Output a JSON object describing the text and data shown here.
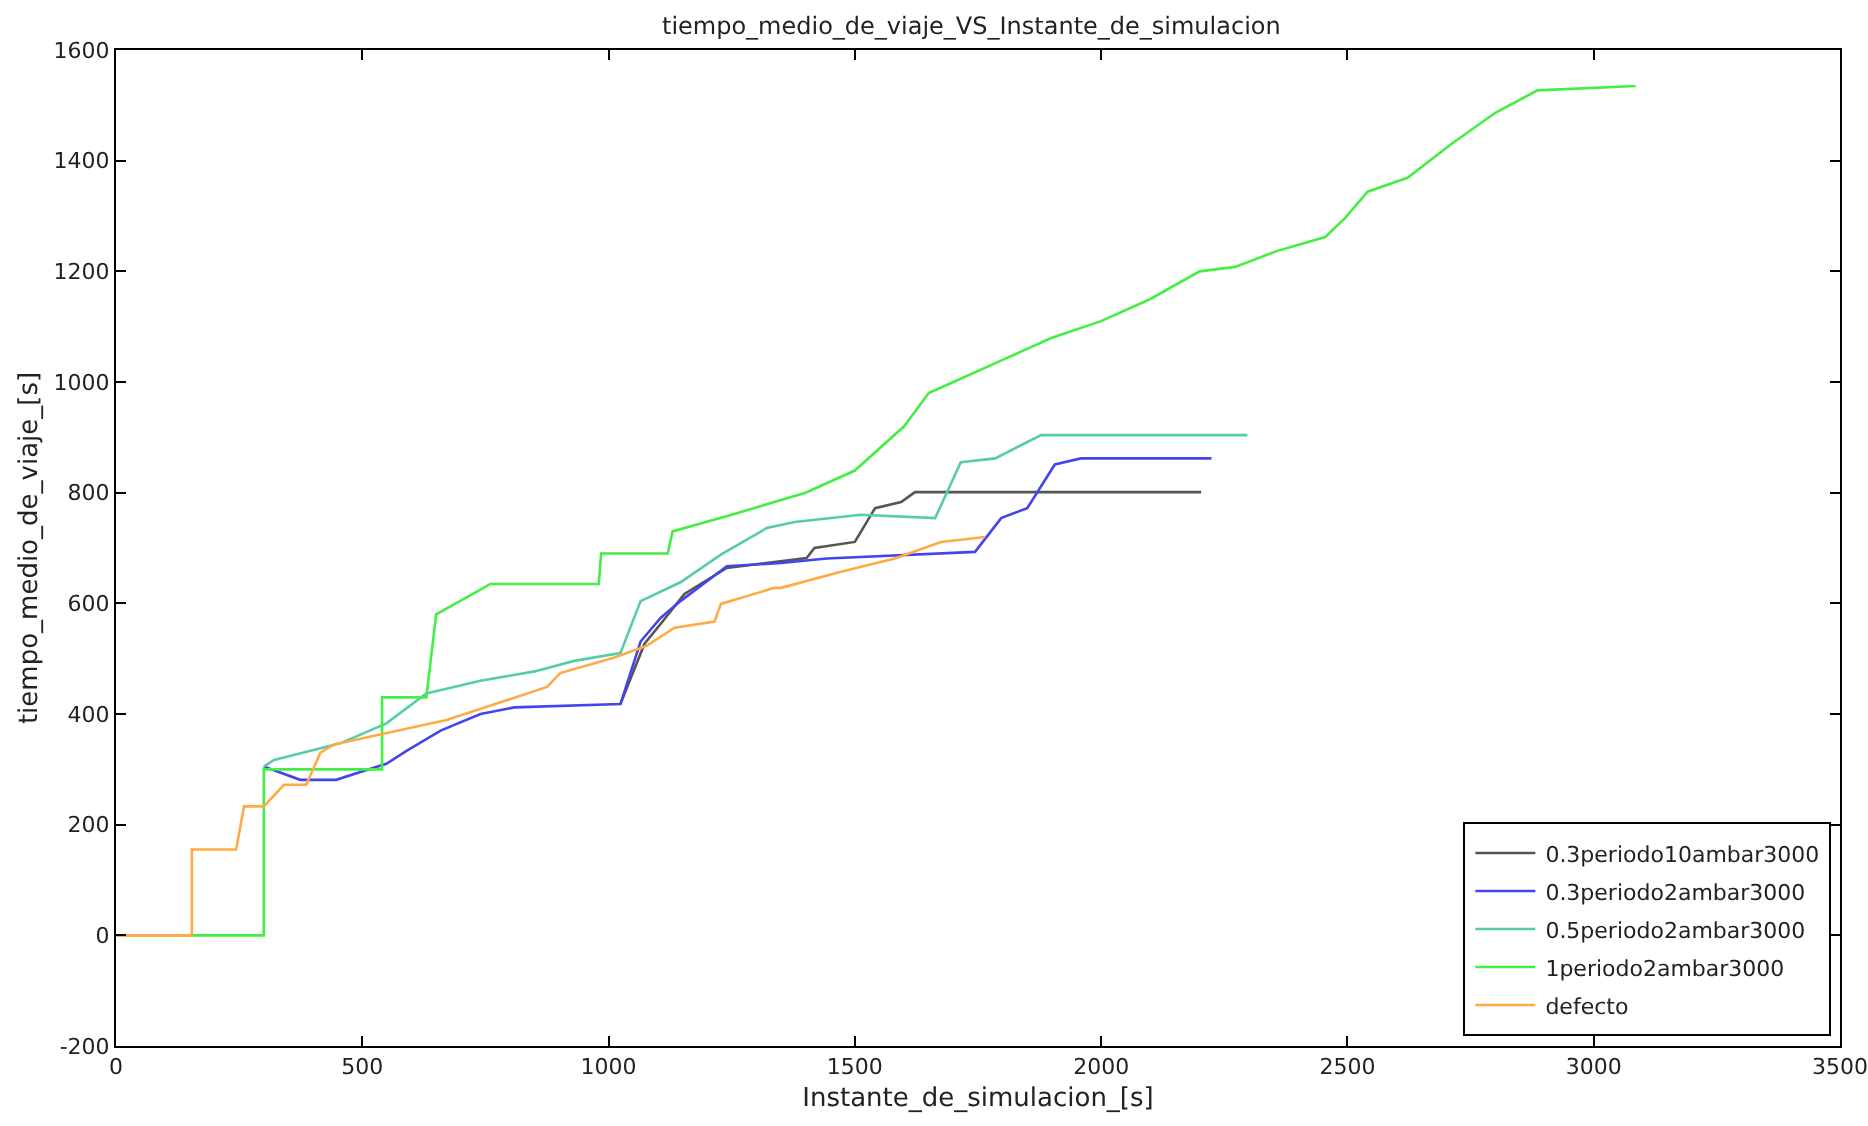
{
  "chart_data": {
    "type": "line",
    "title": "tiempo_medio_de_viaje_VS_Instante_de_simulacion",
    "xlabel": "Instante_de_simulacion_[s]",
    "ylabel": "tiempo_medio_de_viaje_[s]",
    "xlim": [
      0,
      3500
    ],
    "xticks": [
      0,
      500,
      1000,
      1500,
      2000,
      2500,
      3000,
      3500
    ],
    "ylim": [
      -200,
      1600
    ],
    "yticks": [
      -200,
      0,
      200,
      400,
      600,
      800,
      1000,
      1200,
      1400,
      1600
    ],
    "grid": false,
    "legend": "bottom right",
    "line_style": "solid",
    "marker": "none",
    "series": [
      {
        "name": "0.3periodo10ambar3000",
        "color": "#555555",
        "x": [
          1024,
          1073,
          1106,
          1154,
          1240,
          1402,
          1418,
          1500,
          1541,
          1594,
          1622,
          2203
        ],
        "values": [
          418,
          527,
          563,
          617,
          664,
          682,
          700,
          711,
          772,
          783,
          801,
          801
        ]
      },
      {
        "name": "0.3periodo2ambar3000",
        "color": "#4444ee",
        "x": [
          300,
          374,
          447,
          496,
          549,
          589,
          659,
          740,
          809,
          1024,
          1065,
          1106,
          1146,
          1240,
          1350,
          1443,
          1744,
          1797,
          1850,
          1906,
          1959,
          2224
        ],
        "values": [
          305,
          281,
          281,
          295,
          310,
          333,
          370,
          400,
          412,
          418,
          531,
          574,
          604,
          667,
          673,
          681,
          693,
          754,
          772,
          851,
          862,
          862
        ]
      },
      {
        "name": "0.5periodo2ambar3000",
        "color": "#55ccaa",
        "x": [
          300,
          321,
          455,
          549,
          630,
          740,
          850,
          930,
          1024,
          1065,
          1146,
          1228,
          1321,
          1378,
          1512,
          1663,
          1715,
          1785,
          1878,
          2297
        ],
        "values": [
          305,
          317,
          347,
          383,
          437,
          460,
          477,
          496,
          510,
          604,
          638,
          688,
          736,
          747,
          760,
          754,
          855,
          862,
          904,
          904
        ]
      },
      {
        "name": "1periodo2ambar3000",
        "color": "#44ee44",
        "x": [
          0,
          300,
          300,
          540,
          540,
          630,
          650,
          730,
          760,
          980,
          985,
          1120,
          1130,
          1250,
          1400,
          1500,
          1600,
          1650,
          1700,
          1800,
          1900,
          2000,
          2100,
          2200,
          2272,
          2358,
          2455,
          2496,
          2541,
          2622,
          2711,
          2801,
          2886,
          3085
        ],
        "values": [
          0,
          0,
          300,
          300,
          430,
          430,
          580,
          620,
          635,
          635,
          690,
          690,
          730,
          760,
          800,
          840,
          920,
          980,
          1000,
          1040,
          1080,
          1110,
          1150,
          1200,
          1208,
          1237,
          1262,
          1297,
          1344,
          1369,
          1430,
          1487,
          1527,
          1535
        ]
      },
      {
        "name": "defecto",
        "color": "#ffaa44",
        "x": [
          0,
          154,
          154,
          244,
          260,
          300,
          341,
          386,
          415,
          443,
          671,
          875,
          902,
          1012,
          1077,
          1134,
          1215,
          1228,
          1337,
          1350,
          1472,
          1581,
          1675,
          1764
        ],
        "values": [
          0,
          0,
          155,
          155,
          233,
          233,
          272,
          272,
          330,
          345,
          389,
          449,
          474,
          502,
          523,
          556,
          567,
          599,
          628,
          628,
          657,
          681,
          711,
          720
        ]
      }
    ]
  }
}
